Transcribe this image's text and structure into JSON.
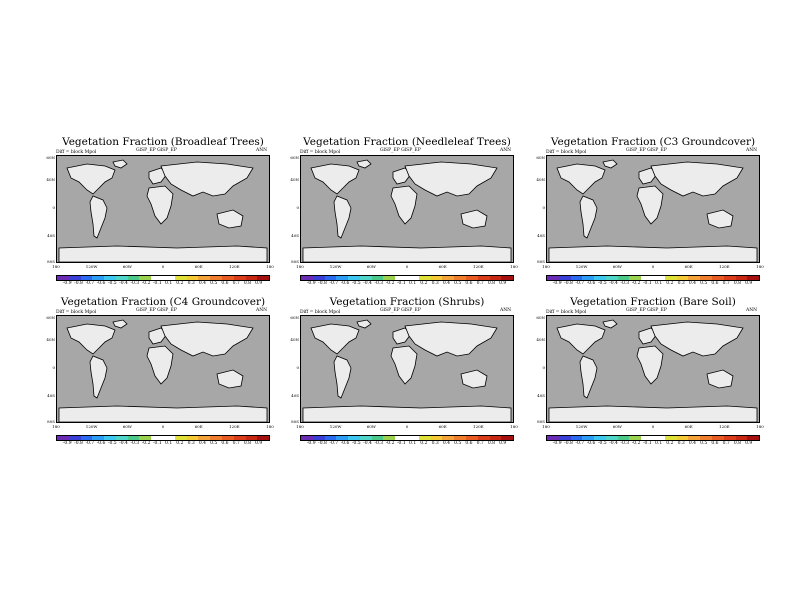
{
  "chart_data": [
    {
      "type": "heatmap",
      "title": "Vegetation Fraction (Broadleaf Trees)",
      "meta_left": "Diff = block Mpol",
      "meta_mid": "GlSP_EP    GlSP_EP",
      "meta_right": "ANN"
    },
    {
      "type": "heatmap",
      "title": "Vegetation Fraction (Needleleaf Trees)",
      "meta_left": "Diff = block Mpol",
      "meta_mid": "GlSP_EP    GlSP_EP",
      "meta_right": "ANN"
    },
    {
      "type": "heatmap",
      "title": "Vegetation Fraction (C3 Groundcover)",
      "meta_left": "Diff = block Mpol",
      "meta_mid": "GlSP_EP    GlSP_EP",
      "meta_right": "ANN"
    },
    {
      "type": "heatmap",
      "title": "Vegetation Fraction (C4 Groundcover)",
      "meta_left": "Diff = block Mpol",
      "meta_mid": "GlSP_EP    GlSP_EP",
      "meta_right": "ANN"
    },
    {
      "type": "heatmap",
      "title": "Vegetation Fraction (Shrubs)",
      "meta_left": "Diff = block Mpol",
      "meta_mid": "GlSP_EP    GlSP_EP",
      "meta_right": "ANN"
    },
    {
      "type": "heatmap",
      "title": "Vegetation Fraction (Bare Soil)",
      "meta_left": "Diff = block Mpol",
      "meta_mid": "GlSP_EP    GlSP_EP",
      "meta_right": "ANN"
    }
  ],
  "axes": {
    "lat_ticks": [
      "60N",
      "40N",
      "0",
      "40S",
      "80S"
    ],
    "lon_ticks": [
      "180",
      "120W",
      "60W",
      "0",
      "60E",
      "120E",
      "180"
    ]
  },
  "colorbar": {
    "labels": [
      "-0.9",
      "-0.8",
      "-0.7",
      "-0.6",
      "-0.5",
      "-0.4",
      "-0.3",
      "-0.2",
      "-0.1",
      "0.1",
      "0.2",
      "0.3",
      "0.4",
      "0.5",
      "0.6",
      "0.7",
      "0.8",
      "0.9"
    ],
    "colors": [
      "#6a2bb5",
      "#3a3fd8",
      "#2b6af0",
      "#2e9bf5",
      "#3cc6f0",
      "#50d6c8",
      "#4bc98b",
      "#9ad24f",
      "#ffffff",
      "#ffffff",
      "#dfe03a",
      "#f3c935",
      "#f3a33a",
      "#ee7d2d",
      "#e85b22",
      "#d93d1a",
      "#c72814",
      "#a61010"
    ]
  },
  "colors": {
    "ocean": "#a7a7a7",
    "land_zero": "#ececec",
    "coast": "#000000"
  }
}
